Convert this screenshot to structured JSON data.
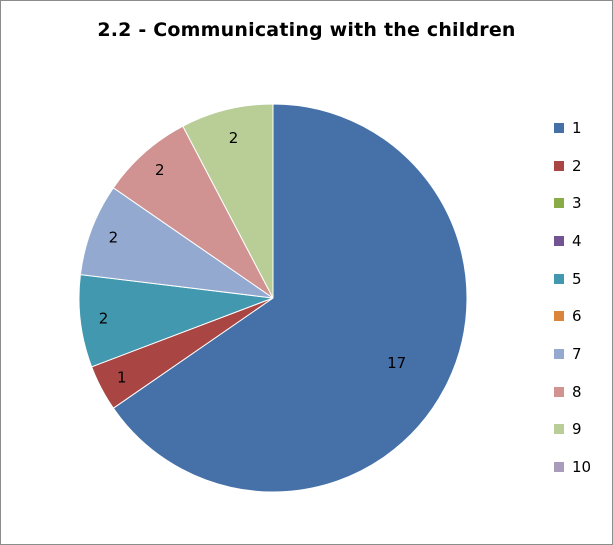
{
  "chart_data": {
    "type": "pie",
    "title": "2.2 - Communicating with the children",
    "categories": [
      "1",
      "2",
      "3",
      "4",
      "5",
      "6",
      "7",
      "8",
      "9",
      "10"
    ],
    "values": [
      17,
      1,
      0,
      0,
      2,
      0,
      2,
      2,
      2,
      0
    ],
    "data_labels": [
      "17",
      "1",
      "",
      "",
      "2",
      "",
      "2",
      "2",
      "2",
      ""
    ],
    "colors": [
      "#4571a8",
      "#a94643",
      "#8aac46",
      "#725492",
      "#4198af",
      "#db843c",
      "#93a9cf",
      "#d19392",
      "#b9cd96",
      "#a99bbc"
    ],
    "start_angle": "12 o'clock",
    "direction": "clockwise",
    "legend_position": "right"
  }
}
